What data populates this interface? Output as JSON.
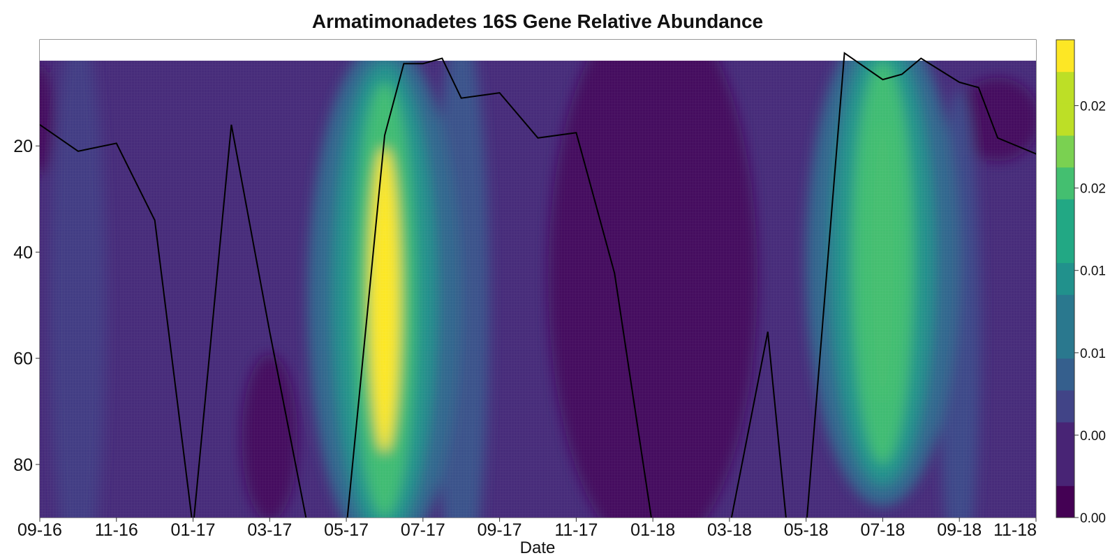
{
  "chart_data": {
    "type": "heatmap",
    "title": "Armatimonadetes 16S Gene Relative Abundance",
    "xlabel": "Date",
    "ylabel": "",
    "x_ticks": [
      "09-16",
      "11-16",
      "01-17",
      "03-17",
      "05-17",
      "07-17",
      "09-17",
      "11-17",
      "01-18",
      "03-18",
      "05-18",
      "07-18",
      "09-18",
      "11-18"
    ],
    "y_ticks": [
      20,
      40,
      60,
      80
    ],
    "ylim": [
      90,
      0
    ],
    "y_inverted": true,
    "colorbar": {
      "colormap": "viridis",
      "range": [
        0.0,
        0.03
      ],
      "levels": 15,
      "tick_labels": [
        "0.00",
        "0.00",
        "0.01",
        "0.01",
        "0.02",
        "0.02"
      ]
    },
    "abundance_peaks": [
      {
        "date": "06-17",
        "depth_range": [
          8,
          90
        ],
        "max_value": 0.029
      },
      {
        "date": "07-18",
        "depth_range": [
          4,
          80
        ],
        "max_value": 0.02
      }
    ],
    "depth_line": {
      "description_free": true,
      "points": [
        {
          "x": "09-16",
          "y": 16
        },
        {
          "x": "10-16",
          "y": 21
        },
        {
          "x": "11-16",
          "y": 19.5
        },
        {
          "x": "12-16",
          "y": 34
        },
        {
          "x": "01-17",
          "y": 92
        },
        {
          "x": "02-17",
          "y": 16
        },
        {
          "x": "03-17",
          "y": 55
        },
        {
          "x": "04-17",
          "y": 92
        },
        {
          "x": "05-17",
          "y": 92
        },
        {
          "x": "06-17",
          "y": 18
        },
        {
          "x": "06-17b",
          "y": 4.5
        },
        {
          "x": "07-17",
          "y": 4.5
        },
        {
          "x": "07-17b",
          "y": 3.5
        },
        {
          "x": "08-17",
          "y": 11
        },
        {
          "x": "09-17",
          "y": 10
        },
        {
          "x": "10-17",
          "y": 18.5
        },
        {
          "x": "11-17",
          "y": 17.5
        },
        {
          "x": "12-17",
          "y": 44
        },
        {
          "x": "01-18",
          "y": 92
        },
        {
          "x": "03-18",
          "y": 92
        },
        {
          "x": "04-18",
          "y": 55
        },
        {
          "x": "04-18b",
          "y": 92
        },
        {
          "x": "05-18",
          "y": 92
        },
        {
          "x": "06-18",
          "y": 2.5
        },
        {
          "x": "07-18",
          "y": 7.5
        },
        {
          "x": "07-18b",
          "y": 6.5
        },
        {
          "x": "08-18",
          "y": 3.5
        },
        {
          "x": "09-18",
          "y": 8
        },
        {
          "x": "09-18b",
          "y": 9
        },
        {
          "x": "10-18",
          "y": 18.5
        },
        {
          "x": "11-18",
          "y": 21.5
        },
        {
          "x": "12-18",
          "y": 28
        }
      ]
    },
    "grid": false
  }
}
